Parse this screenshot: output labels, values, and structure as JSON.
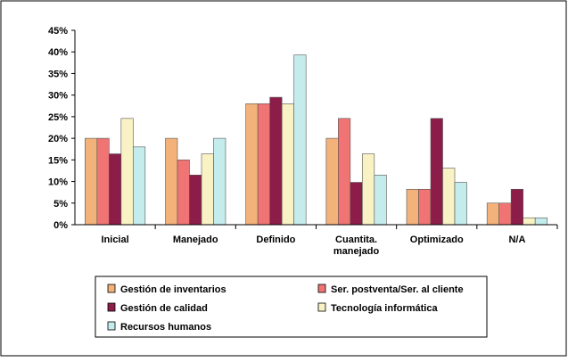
{
  "chart_data": {
    "type": "bar",
    "categories": [
      "Inicial",
      "Manejado",
      "Definido",
      "Cuantita. manejado",
      "Optimizado",
      "N/A"
    ],
    "series": [
      {
        "name": "Gestión de inventarios",
        "color": "#f2b27a",
        "values": [
          20,
          20,
          28,
          20,
          8.2,
          5
        ]
      },
      {
        "name": "Ser. postventa/Ser. al cliente",
        "color": "#f07474",
        "values": [
          20,
          15,
          28,
          24.6,
          8.2,
          5
        ]
      },
      {
        "name": "Gestión de calidad",
        "color": "#8c1c48",
        "values": [
          16.4,
          11.5,
          29.5,
          9.8,
          24.6,
          8.2
        ]
      },
      {
        "name": "Tecnología informática",
        "color": "#f8f2c4",
        "values": [
          24.6,
          16.4,
          28,
          16.4,
          13.1,
          1.6
        ]
      },
      {
        "name": "Recursos humanos",
        "color": "#c4ecec",
        "values": [
          18,
          20,
          39.3,
          11.5,
          9.8,
          1.6
        ]
      }
    ],
    "ylim": [
      0,
      45
    ],
    "yticks": [
      {
        "value": 0,
        "label": "0%"
      },
      {
        "value": 5,
        "label": "5%"
      },
      {
        "value": 10,
        "label": "10%"
      },
      {
        "value": 15,
        "label": "15%"
      },
      {
        "value": 20,
        "label": "20%"
      },
      {
        "value": 25,
        "label": "25%"
      },
      {
        "value": 30,
        "label": "30%"
      },
      {
        "value": 35,
        "label": "35%"
      },
      {
        "value": 40,
        "label": "40%"
      },
      {
        "value": 45,
        "label": "45%"
      }
    ],
    "grid": false,
    "legend": "bottom"
  }
}
